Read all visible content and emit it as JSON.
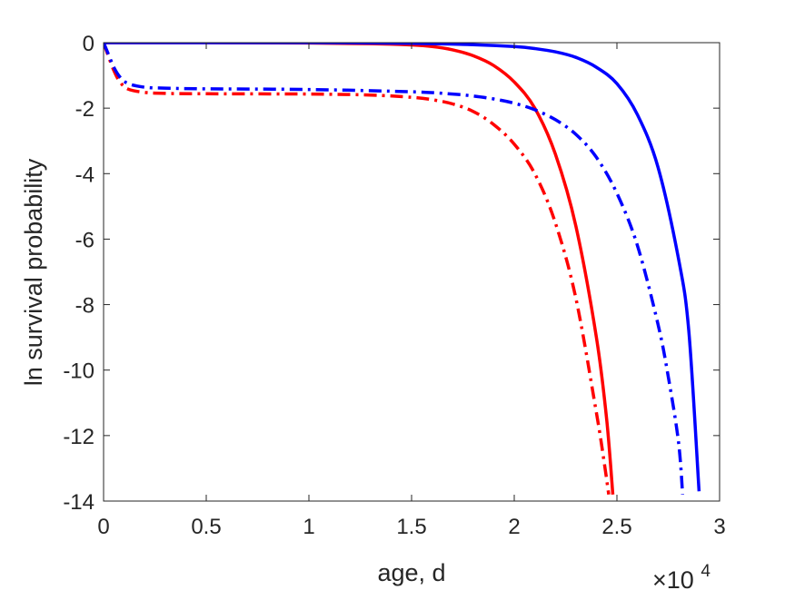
{
  "chart_data": {
    "type": "line",
    "title": "",
    "xlabel": "age, d",
    "ylabel": "ln survival probability",
    "x_exponent_label": "×10",
    "x_exponent_power": "4",
    "xlim": [
      0,
      3
    ],
    "ylim": [
      -14,
      0
    ],
    "xticks": [
      0,
      0.5,
      1,
      1.5,
      2,
      2.5,
      3
    ],
    "xtick_labels": [
      "0",
      "0.5",
      "1",
      "1.5",
      "2",
      "2.5",
      "3"
    ],
    "yticks": [
      0,
      -2,
      -4,
      -6,
      -8,
      -10,
      -12,
      -14
    ],
    "ytick_labels": [
      "0",
      "-2",
      "-4",
      "-6",
      "-8",
      "-10",
      "-12",
      "-14"
    ],
    "grid": false,
    "series": [
      {
        "color": "#ff0000",
        "style": "solid",
        "x": [
          0,
          0.5,
          1.0,
          1.3,
          1.5,
          1.6,
          1.7,
          1.8,
          1.9,
          2.0,
          2.1,
          2.2,
          2.3,
          2.4,
          2.45,
          2.48
        ],
        "y": [
          0,
          0,
          -0.01,
          -0.03,
          -0.07,
          -0.12,
          -0.22,
          -0.4,
          -0.7,
          -1.2,
          -2.0,
          -3.4,
          -5.6,
          -9.0,
          -11.5,
          -13.8
        ]
      },
      {
        "color": "#ff0000",
        "style": "dashdot",
        "x": [
          0,
          0.02,
          0.05,
          0.08,
          0.12,
          0.2,
          0.3,
          0.5,
          1.0,
          1.3,
          1.5,
          1.6,
          1.7,
          1.8,
          1.9,
          2.0,
          2.1,
          2.2,
          2.3,
          2.4,
          2.44,
          2.46
        ],
        "y": [
          0,
          -0.35,
          -0.85,
          -1.2,
          -1.42,
          -1.52,
          -1.55,
          -1.56,
          -1.57,
          -1.6,
          -1.67,
          -1.74,
          -1.87,
          -2.1,
          -2.5,
          -3.1,
          -4.0,
          -5.5,
          -7.8,
          -11.3,
          -12.9,
          -13.8
        ]
      },
      {
        "color": "#0000ff",
        "style": "solid",
        "x": [
          0,
          0.5,
          1.0,
          1.5,
          1.8,
          2.0,
          2.1,
          2.2,
          2.3,
          2.4,
          2.5,
          2.6,
          2.7,
          2.8,
          2.85,
          2.9
        ],
        "y": [
          0,
          0,
          0,
          -0.02,
          -0.06,
          -0.12,
          -0.18,
          -0.28,
          -0.45,
          -0.75,
          -1.25,
          -2.2,
          -3.8,
          -6.6,
          -8.8,
          -13.7
        ]
      },
      {
        "color": "#0000ff",
        "style": "dashdot",
        "x": [
          0,
          0.02,
          0.05,
          0.08,
          0.12,
          0.2,
          0.3,
          0.5,
          1.0,
          1.5,
          1.7,
          1.8,
          1.9,
          2.0,
          2.1,
          2.2,
          2.3,
          2.4,
          2.5,
          2.6,
          2.7,
          2.75,
          2.8,
          2.82
        ],
        "y": [
          0,
          -0.3,
          -0.75,
          -1.05,
          -1.25,
          -1.36,
          -1.39,
          -1.41,
          -1.43,
          -1.5,
          -1.57,
          -1.63,
          -1.72,
          -1.85,
          -2.05,
          -2.35,
          -2.8,
          -3.5,
          -4.6,
          -6.2,
          -8.6,
          -10.2,
          -12.2,
          -13.8
        ]
      }
    ]
  }
}
